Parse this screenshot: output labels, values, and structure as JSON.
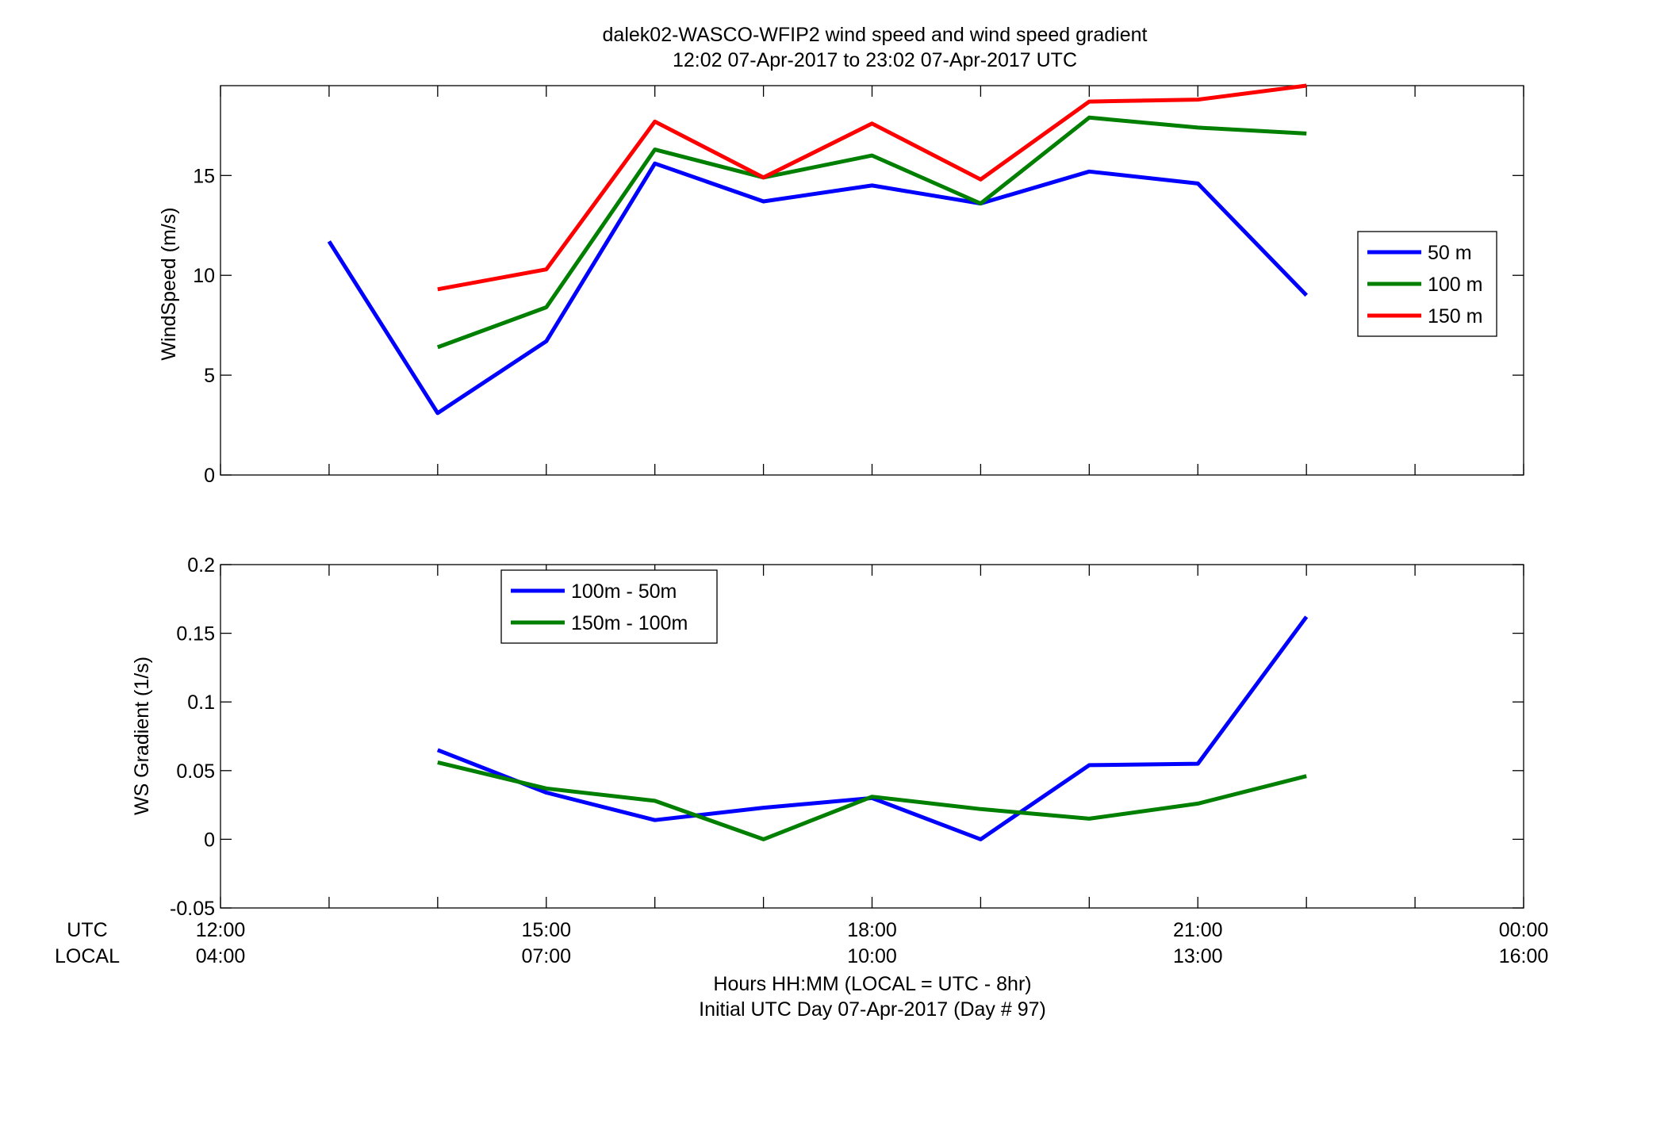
{
  "figure": {
    "title_line1": "dalek02-WASCO-WFIP2  wind speed and wind speed gradient",
    "title_line2": "12:02 07-Apr-2017 to 23:02 07-Apr-2017  UTC",
    "xlabel_line1": "Hours HH:MM  (LOCAL = UTC - 8hr)",
    "xlabel_line2": "Initial UTC Day 07-Apr-2017 (Day # 97)",
    "row_label_utc": "UTC",
    "row_label_local": "LOCAL",
    "x_ticks_utc": [
      "12:00",
      "15:00",
      "18:00",
      "21:00",
      "00:00"
    ],
    "x_ticks_local": [
      "04:00",
      "07:00",
      "10:00",
      "13:00",
      "16:00"
    ]
  },
  "chart_data": [
    {
      "type": "line",
      "ylabel": "WindSpeed (m/s)",
      "xlim": [
        12,
        24
      ],
      "ylim": [
        0,
        19.5
      ],
      "yticks": [
        0,
        5,
        10,
        15
      ],
      "ytick_labels": [
        "0",
        "5",
        "10",
        "15"
      ],
      "legend_position": "right",
      "series": [
        {
          "name": "50 m",
          "color": "#0000ff",
          "x": [
            13,
            14,
            15,
            16,
            17,
            18,
            19,
            20,
            21,
            22
          ],
          "y": [
            11.7,
            3.1,
            6.7,
            15.6,
            13.7,
            14.5,
            13.6,
            15.2,
            14.6,
            9.0
          ]
        },
        {
          "name": "100 m",
          "color": "#007f00",
          "x": [
            14,
            15,
            16,
            17,
            18,
            19,
            20,
            21,
            22
          ],
          "y": [
            6.4,
            8.4,
            16.3,
            14.9,
            16.0,
            13.6,
            17.9,
            17.4,
            17.1
          ]
        },
        {
          "name": "150 m",
          "color": "#ff0000",
          "x": [
            14,
            15,
            16,
            17,
            18,
            19,
            20,
            21,
            22
          ],
          "y": [
            9.3,
            10.3,
            17.7,
            14.9,
            17.6,
            14.8,
            18.7,
            18.8,
            19.5
          ]
        }
      ]
    },
    {
      "type": "line",
      "ylabel": "WS Gradient (1/s)",
      "xlim": [
        12,
        24
      ],
      "ylim": [
        -0.05,
        0.2
      ],
      "yticks": [
        -0.05,
        0,
        0.05,
        0.1,
        0.15,
        0.2
      ],
      "ytick_labels": [
        "-0.05",
        "0",
        "0.05",
        "0.1",
        "0.15",
        "0.2"
      ],
      "legend_position": "top-left",
      "series": [
        {
          "name": "100m - 50m",
          "color": "#0000ff",
          "x": [
            14,
            15,
            16,
            17,
            18,
            19,
            20,
            21,
            22
          ],
          "y": [
            0.065,
            0.034,
            0.014,
            0.023,
            0.03,
            0.0,
            0.054,
            0.055,
            0.162
          ]
        },
        {
          "name": "150m - 100m",
          "color": "#007f00",
          "x": [
            14,
            15,
            16,
            17,
            18,
            19,
            20,
            21,
            22
          ],
          "y": [
            0.056,
            0.037,
            0.028,
            0.0,
            0.031,
            0.022,
            0.015,
            0.026,
            0.046
          ]
        }
      ]
    }
  ]
}
